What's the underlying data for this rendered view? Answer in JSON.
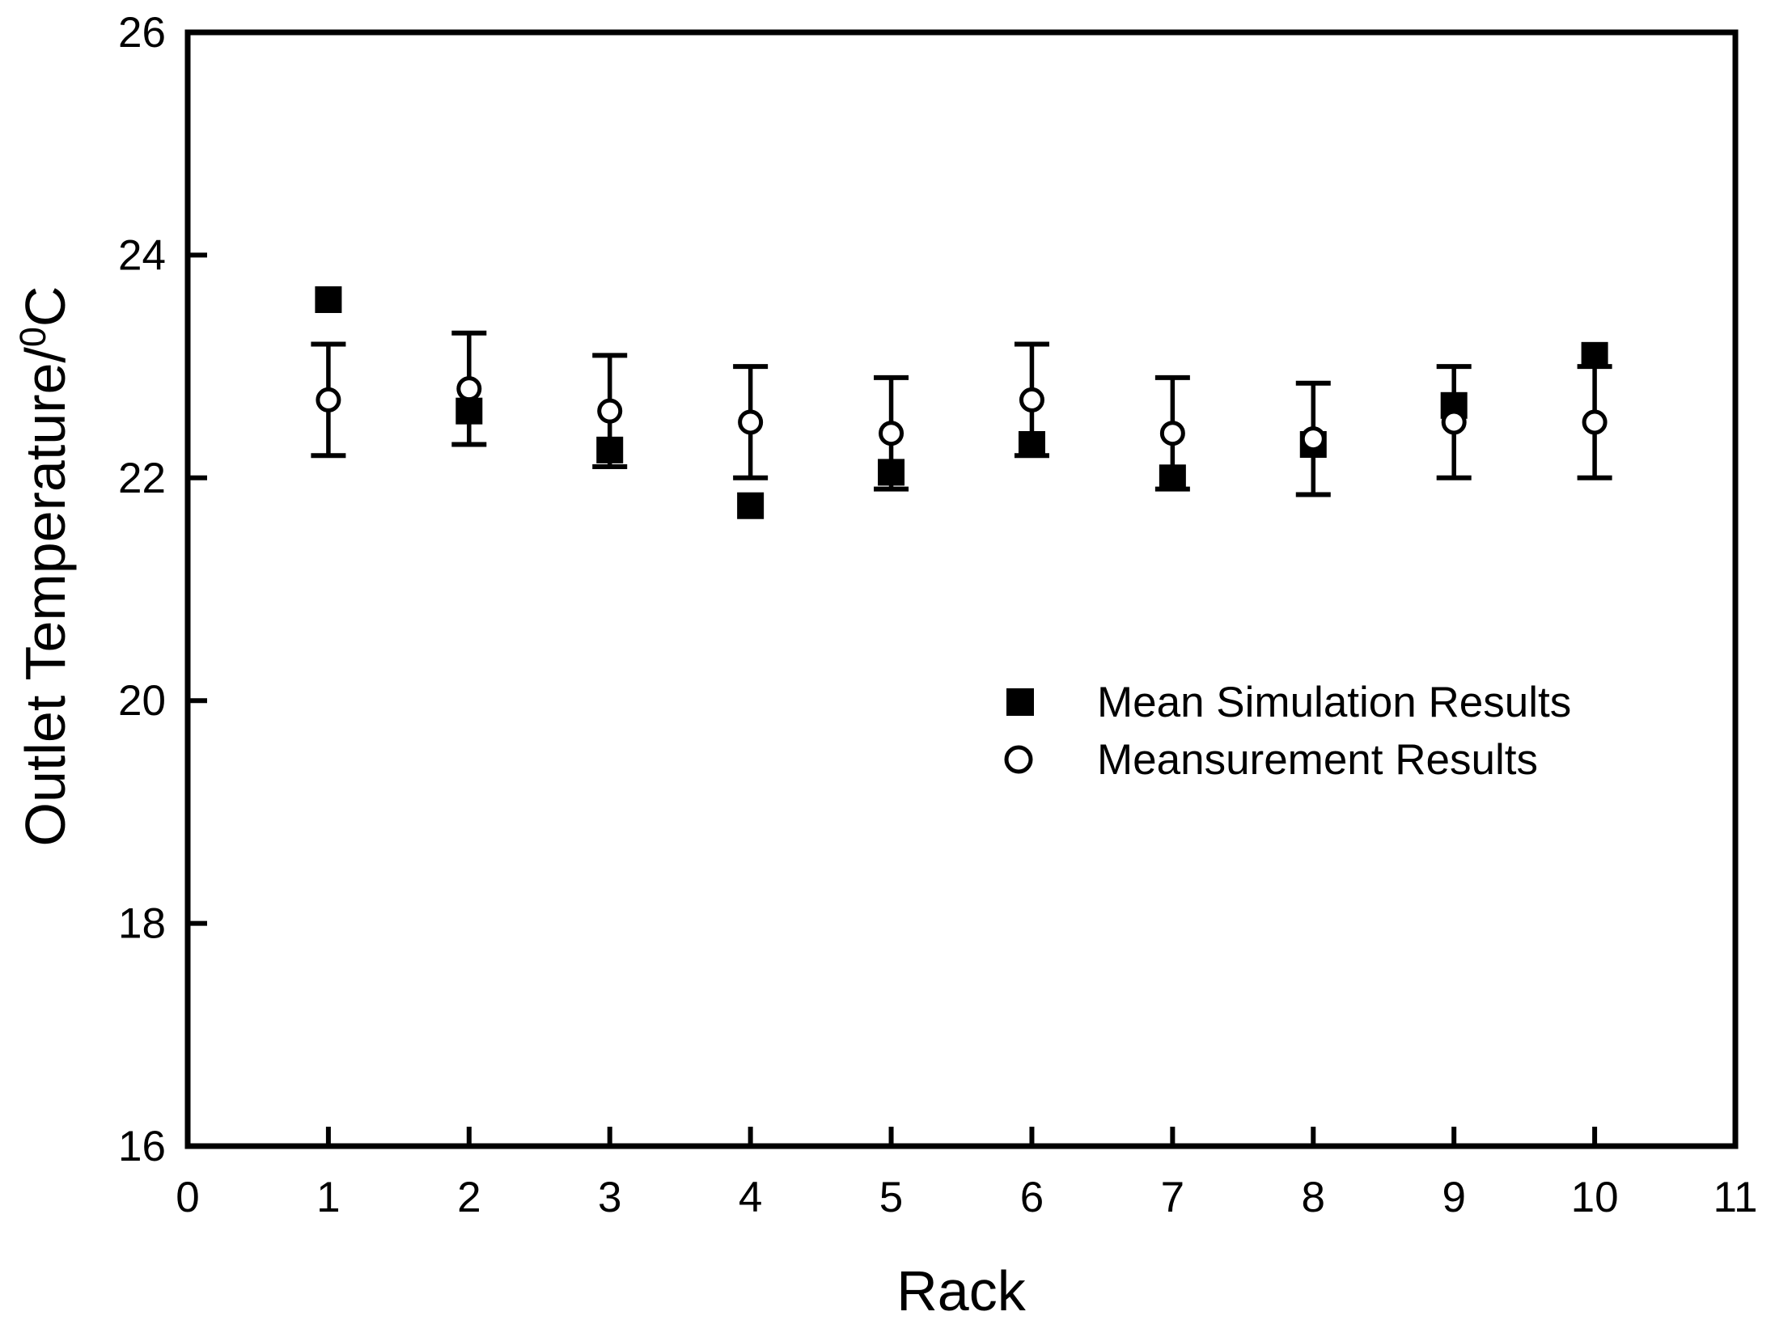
{
  "figure": {
    "background": "#ffffff",
    "ink_color": "#000000"
  },
  "chart_data": {
    "type": "scatter",
    "title": "",
    "xlabel": "Rack",
    "ylabel": {
      "text": "Outlet Temperature/",
      "superscript": "0",
      "unit": "C"
    },
    "xlim": [
      0,
      11
    ],
    "ylim": [
      16,
      26
    ],
    "xticks": [
      0,
      1,
      2,
      3,
      4,
      5,
      6,
      7,
      8,
      9,
      10,
      11
    ],
    "yticks": [
      16,
      18,
      20,
      22,
      24,
      26
    ],
    "grid": false,
    "legend_position": "inside-center-right",
    "x": [
      1,
      2,
      3,
      4,
      5,
      6,
      7,
      8,
      9,
      10
    ],
    "series": [
      {
        "name": "Mean Simulation Results",
        "marker": "filled-square",
        "color": "#000000",
        "values": [
          23.6,
          22.6,
          22.25,
          21.75,
          22.05,
          22.3,
          22.0,
          22.3,
          22.65,
          23.1
        ],
        "error": null
      },
      {
        "name": "Meansurement Results",
        "marker": "open-circle",
        "color": "#000000",
        "values": [
          22.7,
          22.8,
          22.6,
          22.5,
          22.4,
          22.7,
          22.4,
          22.35,
          22.5,
          22.5
        ],
        "error": 0.5
      }
    ]
  }
}
